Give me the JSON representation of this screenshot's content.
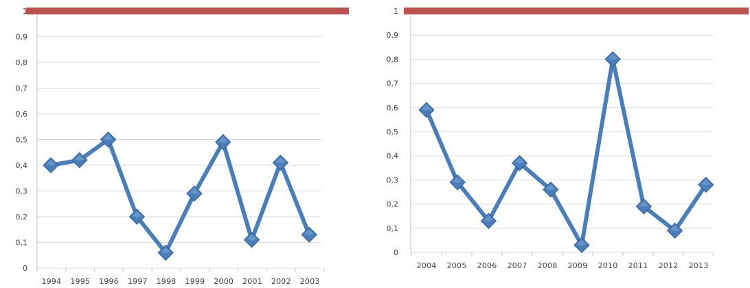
{
  "chart_data": [
    {
      "type": "line",
      "x": [
        "1994",
        "1995",
        "1996",
        "1997",
        "1998",
        "1999",
        "2000",
        "2001",
        "2002",
        "2003"
      ],
      "series": [
        {
          "values": [
            0.4,
            0.42,
            0.5,
            0.2,
            0.06,
            0.29,
            0.49,
            0.11,
            0.41,
            0.13
          ],
          "color": "#4a7ebb",
          "marker": "diamond"
        }
      ],
      "ylim": [
        0,
        1
      ],
      "yticks": [
        "0",
        "0,1",
        "0,2",
        "0,3",
        "0,4",
        "0,5",
        "0,6",
        "0,7",
        "0,8",
        "0,9",
        "1"
      ],
      "grid": true,
      "top_band_color": "#c0504d"
    },
    {
      "type": "line",
      "x": [
        "2004",
        "2005",
        "2006",
        "2007",
        "2008",
        "2009",
        "2010",
        "2011",
        "2012",
        "2013"
      ],
      "series": [
        {
          "values": [
            0.59,
            0.29,
            0.13,
            0.37,
            0.26,
            0.03,
            0.8,
            0.19,
            0.09,
            0.28
          ],
          "color": "#4a7ebb",
          "marker": "diamond"
        }
      ],
      "ylim": [
        0,
        1
      ],
      "yticks": [
        "0",
        "0,1",
        "0,2",
        "0,3",
        "0,4",
        "0,5",
        "0,6",
        "0,7",
        "0,8",
        "0,9",
        "1"
      ],
      "grid": true,
      "top_band_color": "#c0504d"
    }
  ]
}
